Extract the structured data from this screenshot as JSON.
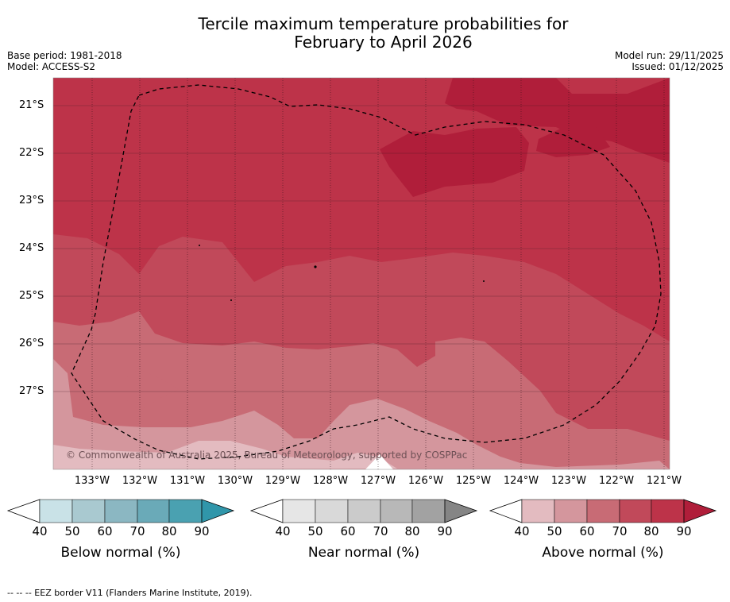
{
  "title": {
    "line1": "Tercile maximum temperature probabilities for",
    "line2": "February to April 2026"
  },
  "meta": {
    "base_period": "Base period: 1981-2018",
    "model": "Model: ACCESS-S2",
    "model_run": "Model run: 29/11/2025",
    "issued": "Issued: 01/12/2025"
  },
  "map": {
    "copyright": "© Commonwealth of Australia 2025, Bureau of Meteorology, supported by COSPPac",
    "lat_labels": [
      "21°S",
      "22°S",
      "23°S",
      "24°S",
      "25°S",
      "26°S",
      "27°S"
    ],
    "lon_labels": [
      "133°W",
      "132°W",
      "131°W",
      "130°W",
      "129°W",
      "128°W",
      "127°W",
      "126°W",
      "125°W",
      "124°W",
      "123°W",
      "122°W",
      "121°W"
    ],
    "colors": {
      "above_80": "#bd3349",
      "above_90": "#b01e3a",
      "above_70": "#c1495a",
      "above_60": "#c86b75",
      "above_50": "#d4969d",
      "above_40": "#e3bbc0"
    }
  },
  "legends": [
    {
      "title": "Below normal (%)",
      "ticks": [
        "40",
        "50",
        "60",
        "70",
        "80",
        "90"
      ],
      "colors": [
        "#c9e2e7",
        "#a9c9d0",
        "#8bb7c2",
        "#6aaab8",
        "#4aa1b1",
        "#3096aa"
      ]
    },
    {
      "title": "Near normal (%)",
      "ticks": [
        "40",
        "50",
        "60",
        "70",
        "80",
        "90"
      ],
      "colors": [
        "#e6e6e6",
        "#d9d9d9",
        "#cbcbcb",
        "#b8b8b8",
        "#a2a2a2",
        "#858585"
      ]
    },
    {
      "title": "Above normal (%)",
      "ticks": [
        "40",
        "50",
        "60",
        "70",
        "80",
        "90"
      ],
      "colors": [
        "#e3bbc0",
        "#d4969d",
        "#c86b75",
        "#c1495a",
        "#bd3349",
        "#b01e3a"
      ]
    }
  ],
  "footer": "--  --  -- EEZ border V11 (Flanders Marine Institute, 2019)."
}
